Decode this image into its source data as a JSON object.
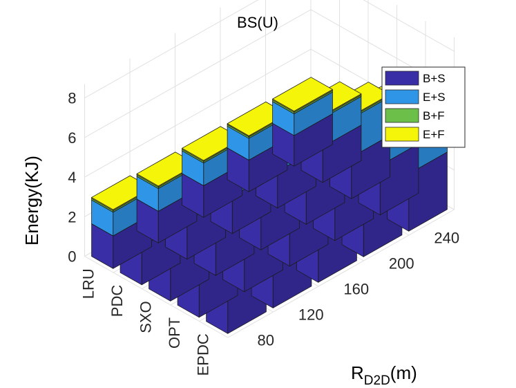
{
  "chart_data": {
    "type": "bar3d-stacked",
    "title": "BS(U)",
    "zlabel": "Energy(KJ)",
    "xlabel": "R",
    "xlabel_sub": "D2D",
    "xlabel_unit": "(m)",
    "zlim": [
      0,
      8
    ],
    "zticks": [
      "0",
      "2",
      "4",
      "6",
      "8"
    ],
    "schemes": [
      "LRU",
      "PDC",
      "SXO",
      "OPT",
      "EPDC"
    ],
    "distances": [
      "240",
      "200",
      "160",
      "120",
      "80"
    ],
    "legend_position": "top-right",
    "series": [
      {
        "name": "B+S",
        "color": "#3a2ea7",
        "values": [
          [
            1.65,
            1.6,
            1.6,
            1.6,
            1.55
          ],
          [
            1.95,
            1.95,
            1.9,
            1.85,
            1.8
          ],
          [
            2.3,
            2.25,
            2.2,
            2.15,
            2.1
          ],
          [
            2.7,
            2.65,
            2.6,
            2.55,
            2.5
          ],
          [
            3.1,
            3.05,
            3.0,
            2.95,
            2.9
          ]
        ]
      },
      {
        "name": "E+S",
        "color": "#2f95e6",
        "values": [
          [
            1.2,
            1.15,
            1.15,
            1.1,
            1.1
          ],
          [
            1.6,
            1.55,
            1.5,
            1.5,
            1.45
          ],
          [
            2.15,
            2.1,
            2.05,
            2.0,
            1.95
          ],
          [
            2.8,
            2.75,
            2.7,
            2.65,
            2.6
          ],
          [
            3.4,
            3.35,
            3.3,
            3.25,
            3.2
          ]
        ]
      },
      {
        "name": "B+F",
        "color": "#6cc04a",
        "values": [
          [
            0.08,
            0.08,
            0.08,
            0.08,
            0.08
          ],
          [
            0.08,
            0.08,
            0.08,
            0.08,
            0.08
          ],
          [
            0.08,
            0.08,
            0.08,
            0.08,
            0.08
          ],
          [
            0.08,
            0.08,
            0.08,
            0.08,
            0.08
          ],
          [
            0.08,
            0.08,
            0.08,
            0.08,
            0.08
          ]
        ]
      },
      {
        "name": "E+F",
        "color": "#f5f50a",
        "values": [
          [
            0.05,
            0.05,
            0.05,
            0.05,
            0.05
          ],
          [
            0.05,
            0.05,
            0.05,
            0.05,
            0.05
          ],
          [
            0.05,
            0.05,
            0.05,
            0.05,
            0.05
          ],
          [
            0.05,
            0.05,
            0.05,
            0.05,
            0.05
          ],
          [
            0.05,
            0.05,
            0.05,
            0.05,
            0.05
          ]
        ]
      }
    ]
  }
}
